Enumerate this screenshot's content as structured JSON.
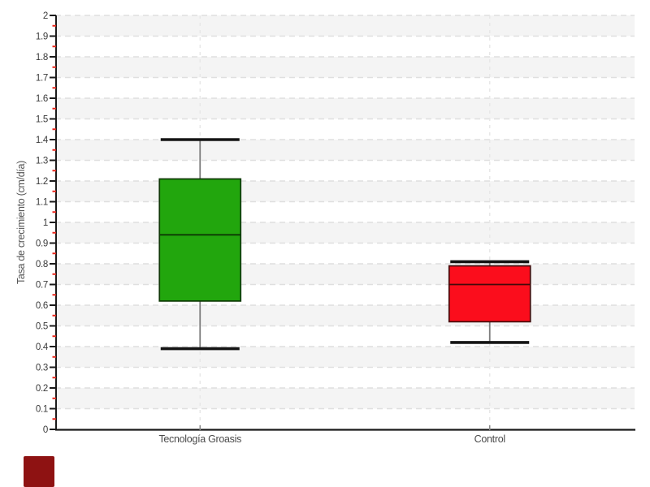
{
  "chart_data": {
    "type": "boxplot",
    "title": "",
    "ylabel": "Tasa de crecimiento (cm/día)",
    "xlabel": "",
    "categories": [
      "Tecnología Groasis",
      "Control"
    ],
    "series": [
      {
        "name": "Tecnología Groasis",
        "min": 0.39,
        "q1": 0.62,
        "median": 0.94,
        "q3": 1.21,
        "max": 1.4,
        "fill": "#22a60d",
        "stroke": "#0d3804"
      },
      {
        "name": "Control",
        "min": 0.42,
        "q1": 0.52,
        "median": 0.7,
        "q3": 0.79,
        "max": 0.81,
        "fill": "#fb0d1c",
        "stroke": "#420a0a"
      }
    ],
    "ylim": [
      0,
      2
    ],
    "y_major_step": 0.1,
    "y_minor_step": 0.05,
    "y_tick_labels": [
      "0",
      "0.1",
      "0.2",
      "0.3",
      "0.4",
      "0.5",
      "0.6",
      "0.7",
      "0.8",
      "0.9",
      "1",
      "1.1",
      "1.2",
      "1.3",
      "1.4",
      "1.5",
      "1.6",
      "1.7",
      "1.8",
      "1.9",
      "2"
    ],
    "legend": "none",
    "grid": {
      "horizontal": "dashed",
      "vertical": "dashed at category centers",
      "background_bands": "alternating every 0.1"
    }
  },
  "style": {
    "band_color": "#f4f4f4",
    "h_grid_color": "#dfdfdf",
    "v_grid_color": "#e8e8e8",
    "axis_color": "#1a1a1a",
    "major_tick_color": "#1a1a1a",
    "minor_tick_color": "#e8271c",
    "tick_label_color": "#3a3a3a",
    "category_label_color": "#4a4a4a",
    "ylabel_color": "#555555",
    "whisker_stem_color": "#7d7d7d",
    "whisker_cap_color": "#141414",
    "category_tick_color": "#888888"
  },
  "decorations": {
    "corner_square_color": "#8e1212"
  }
}
